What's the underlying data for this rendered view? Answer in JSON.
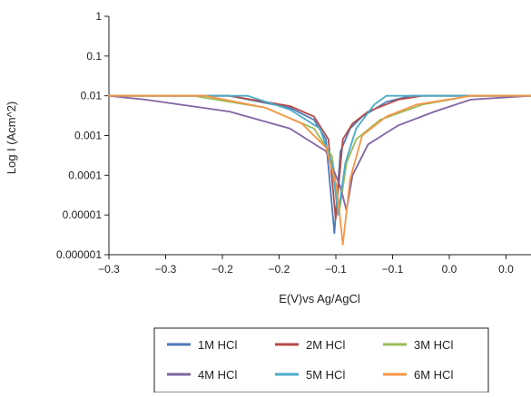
{
  "chart_data": {
    "type": "line",
    "title": "",
    "xlabel": "E(V)vs Ag/AgCl",
    "ylabel": "Log I (Acm^2)",
    "x_tick_labels": [
      "−0.3",
      "−0.3",
      "−0.2",
      "−0.2",
      "−0.1",
      "−0.1",
      "0.0",
      "0.0"
    ],
    "y_tick_labels": [
      "1",
      "0.1",
      "0.01",
      "0.001",
      "0.0001",
      "0.00001",
      "0.000001"
    ],
    "xlim": [
      -0.3,
      0.05
    ],
    "ylim": [
      1e-06,
      1
    ],
    "yscale": "log",
    "grid": false,
    "legend_position": "bottom",
    "legend_columns": 3,
    "series": [
      {
        "name": "1M HCl",
        "color": "#4e79b6",
        "x": [
          -0.3,
          -0.2,
          -0.15,
          -0.13,
          -0.12,
          -0.113,
          -0.108,
          -0.1,
          -0.09,
          -0.07,
          -0.05,
          0.0,
          0.05
        ],
        "y": [
          0.01,
          0.01,
          0.005,
          0.0025,
          0.0008,
          3.5e-06,
          0.0004,
          0.0015,
          0.003,
          0.007,
          0.01,
          0.01,
          0.01
        ]
      },
      {
        "name": "2M HCl",
        "color": "#b54a47",
        "x": [
          -0.3,
          -0.2,
          -0.15,
          -0.13,
          -0.118,
          -0.112,
          -0.106,
          -0.098,
          -0.085,
          -0.06,
          -0.04,
          0.0,
          0.05
        ],
        "y": [
          0.01,
          0.01,
          0.0055,
          0.003,
          0.0008,
          8e-06,
          0.0008,
          0.002,
          0.004,
          0.008,
          0.01,
          0.01,
          0.01
        ]
      },
      {
        "name": "3M HCl",
        "color": "#9bbb59",
        "x": [
          -0.3,
          -0.23,
          -0.17,
          -0.13,
          -0.115,
          -0.109,
          -0.103,
          -0.095,
          -0.075,
          -0.04,
          0.0,
          0.05
        ],
        "y": [
          0.01,
          0.01,
          0.005,
          0.0015,
          0.0003,
          1.2e-05,
          0.0002,
          0.0008,
          0.0025,
          0.006,
          0.01,
          0.01
        ]
      },
      {
        "name": "4M HCl",
        "color": "#8064a2",
        "x": [
          -0.3,
          -0.27,
          -0.2,
          -0.15,
          -0.12,
          -0.108,
          -0.103,
          -0.098,
          -0.085,
          -0.06,
          -0.03,
          0.0,
          0.05
        ],
        "y": [
          0.01,
          0.008,
          0.004,
          0.0015,
          0.0004,
          5e-05,
          1.3e-05,
          0.0001,
          0.0006,
          0.0018,
          0.004,
          0.008,
          0.01
        ]
      },
      {
        "name": "5M HCl",
        "color": "#4bacc6",
        "x": [
          -0.3,
          -0.2,
          -0.185,
          -0.15,
          -0.125,
          -0.115,
          -0.11,
          -0.104,
          -0.095,
          -0.08,
          -0.07,
          -0.04,
          0.0,
          0.05
        ],
        "y": [
          0.01,
          0.01,
          0.01,
          0.0045,
          0.0015,
          0.0002,
          1e-05,
          0.0002,
          0.0015,
          0.006,
          0.01,
          0.01,
          0.01,
          0.01
        ]
      },
      {
        "name": "6M HCl",
        "color": "#f79646",
        "x": [
          -0.3,
          -0.22,
          -0.17,
          -0.14,
          -0.12,
          -0.111,
          -0.106,
          -0.1,
          -0.09,
          -0.07,
          -0.045,
          0.0,
          0.05
        ],
        "y": [
          0.01,
          0.01,
          0.005,
          0.002,
          0.0005,
          5e-05,
          1.8e-06,
          8e-05,
          0.001,
          0.003,
          0.006,
          0.01,
          0.01
        ]
      }
    ]
  }
}
